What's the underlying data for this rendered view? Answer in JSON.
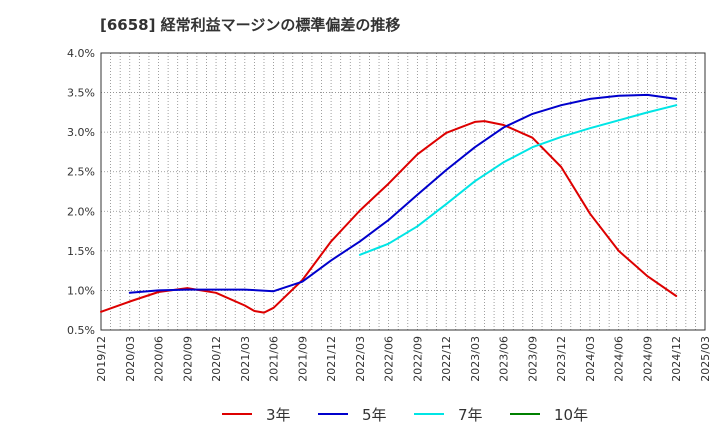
{
  "title": "[6658]  経常利益マージンの標準偏差の推移",
  "chart_data": {
    "type": "line",
    "title": "[6658]  経常利益マージンの標準偏差の推移",
    "xlabel": "",
    "ylabel": "",
    "ylim": [
      0.5,
      4.0
    ],
    "y_ticks": [
      "0.5%",
      "1.0%",
      "1.5%",
      "2.0%",
      "2.5%",
      "3.0%",
      "3.5%",
      "4.0%"
    ],
    "x_ticks": [
      "2019/12",
      "2020/03",
      "2020/06",
      "2020/09",
      "2020/12",
      "2021/03",
      "2021/06",
      "2021/09",
      "2021/12",
      "2022/03",
      "2022/06",
      "2022/09",
      "2022/12",
      "2023/03",
      "2023/06",
      "2023/09",
      "2023/12",
      "2024/03",
      "2024/06",
      "2024/09",
      "2024/12",
      "2025/03"
    ],
    "grid": true,
    "legend_position": "bottom",
    "series": [
      {
        "name": "3年",
        "color": "#dd0000",
        "points": [
          [
            "2019/12",
            0.73
          ],
          [
            "2020/03",
            0.86
          ],
          [
            "2020/06",
            0.98
          ],
          [
            "2020/09",
            1.03
          ],
          [
            "2020/12",
            0.97
          ],
          [
            "2021/03",
            0.81
          ],
          [
            "2021/04",
            0.74
          ],
          [
            "2021/05",
            0.72
          ],
          [
            "2021/06",
            0.78
          ],
          [
            "2021/09",
            1.13
          ],
          [
            "2021/12",
            1.62
          ],
          [
            "2022/03",
            2.01
          ],
          [
            "2022/06",
            2.35
          ],
          [
            "2022/09",
            2.72
          ],
          [
            "2022/12",
            2.99
          ],
          [
            "2023/03",
            3.13
          ],
          [
            "2023/04",
            3.14
          ],
          [
            "2023/06",
            3.09
          ],
          [
            "2023/09",
            2.93
          ],
          [
            "2023/12",
            2.56
          ],
          [
            "2024/03",
            1.97
          ],
          [
            "2024/06",
            1.5
          ],
          [
            "2024/09",
            1.18
          ],
          [
            "2024/12",
            0.93
          ]
        ]
      },
      {
        "name": "5年",
        "color": "#0000cc",
        "points": [
          [
            "2020/03",
            0.97
          ],
          [
            "2020/06",
            1.0
          ],
          [
            "2020/09",
            1.01
          ],
          [
            "2020/12",
            1.01
          ],
          [
            "2021/03",
            1.01
          ],
          [
            "2021/06",
            0.99
          ],
          [
            "2021/09",
            1.11
          ],
          [
            "2021/12",
            1.38
          ],
          [
            "2022/03",
            1.62
          ],
          [
            "2022/06",
            1.89
          ],
          [
            "2022/09",
            2.21
          ],
          [
            "2022/12",
            2.52
          ],
          [
            "2023/03",
            2.81
          ],
          [
            "2023/06",
            3.06
          ],
          [
            "2023/09",
            3.23
          ],
          [
            "2023/12",
            3.34
          ],
          [
            "2024/03",
            3.42
          ],
          [
            "2024/06",
            3.46
          ],
          [
            "2024/09",
            3.47
          ],
          [
            "2024/12",
            3.42
          ]
        ]
      },
      {
        "name": "7年",
        "color": "#00e5e5",
        "points": [
          [
            "2022/03",
            1.45
          ],
          [
            "2022/06",
            1.59
          ],
          [
            "2022/09",
            1.81
          ],
          [
            "2022/12",
            2.09
          ],
          [
            "2023/03",
            2.38
          ],
          [
            "2023/06",
            2.62
          ],
          [
            "2023/09",
            2.81
          ],
          [
            "2023/12",
            2.94
          ],
          [
            "2024/03",
            3.05
          ],
          [
            "2024/06",
            3.15
          ],
          [
            "2024/09",
            3.25
          ],
          [
            "2024/12",
            3.34
          ]
        ]
      },
      {
        "name": "10年",
        "color": "#008000",
        "points": []
      }
    ]
  }
}
